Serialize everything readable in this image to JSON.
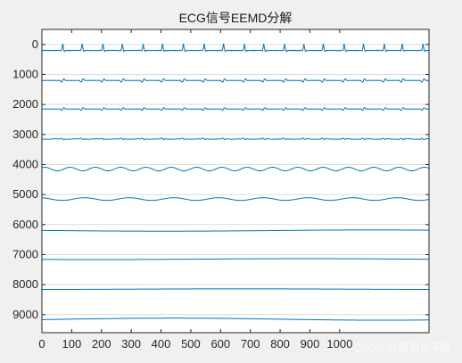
{
  "chart_data": {
    "type": "line",
    "title": "ECG信号EEMD分解",
    "xlabel": "",
    "ylabel": "",
    "xlim": [
      0,
      1300
    ],
    "ylim": [
      -500,
      9600
    ],
    "y_reversed": true,
    "grid": "horizontal",
    "x_ticks": [
      0,
      100,
      200,
      300,
      400,
      500,
      600,
      700,
      800,
      900,
      1000
    ],
    "x_tick_labels": [
      "0",
      "100",
      "200",
      "300",
      "400",
      "500",
      "600",
      "700",
      "800",
      "900",
      "1000"
    ],
    "y_ticks": [
      0,
      1000,
      2000,
      3000,
      4000,
      5000,
      6000,
      7000,
      8000,
      9000
    ],
    "y_tick_labels": [
      "0",
      "1000",
      "2000",
      "3000",
      "4000",
      "5000",
      "6000",
      "7000",
      "8000",
      "9000"
    ],
    "line_color": "#0072bd",
    "beat_positions": [
      70,
      135,
      205,
      270,
      340,
      405,
      475,
      545,
      610,
      680,
      745,
      815,
      880,
      945,
      1015,
      1080,
      1150,
      1210,
      1280
    ],
    "series": [
      {
        "offset": 200,
        "kind": "spikes",
        "spike_height": 220,
        "baseline_noise": 15
      },
      {
        "offset": 1200,
        "kind": "biphasic",
        "amplitude": 90
      },
      {
        "offset": 2150,
        "kind": "biphasic",
        "amplitude": 70
      },
      {
        "offset": 3150,
        "kind": "wavy",
        "amplitude": 55
      },
      {
        "offset": 4150,
        "kind": "slow-wave",
        "amplitude": 60,
        "period": 85
      },
      {
        "offset": 5150,
        "kind": "slow-wave",
        "amplitude": 45,
        "period": 150
      },
      {
        "offset": 6200,
        "kind": "drift",
        "amplitude": 20
      },
      {
        "offset": 7150,
        "kind": "drift",
        "amplitude": 15
      },
      {
        "offset": 8150,
        "kind": "drift",
        "amplitude": 10
      },
      {
        "offset": 9150,
        "kind": "drift",
        "amplitude": 35
      }
    ]
  },
  "watermark": "CSDN @猿到长不胖"
}
